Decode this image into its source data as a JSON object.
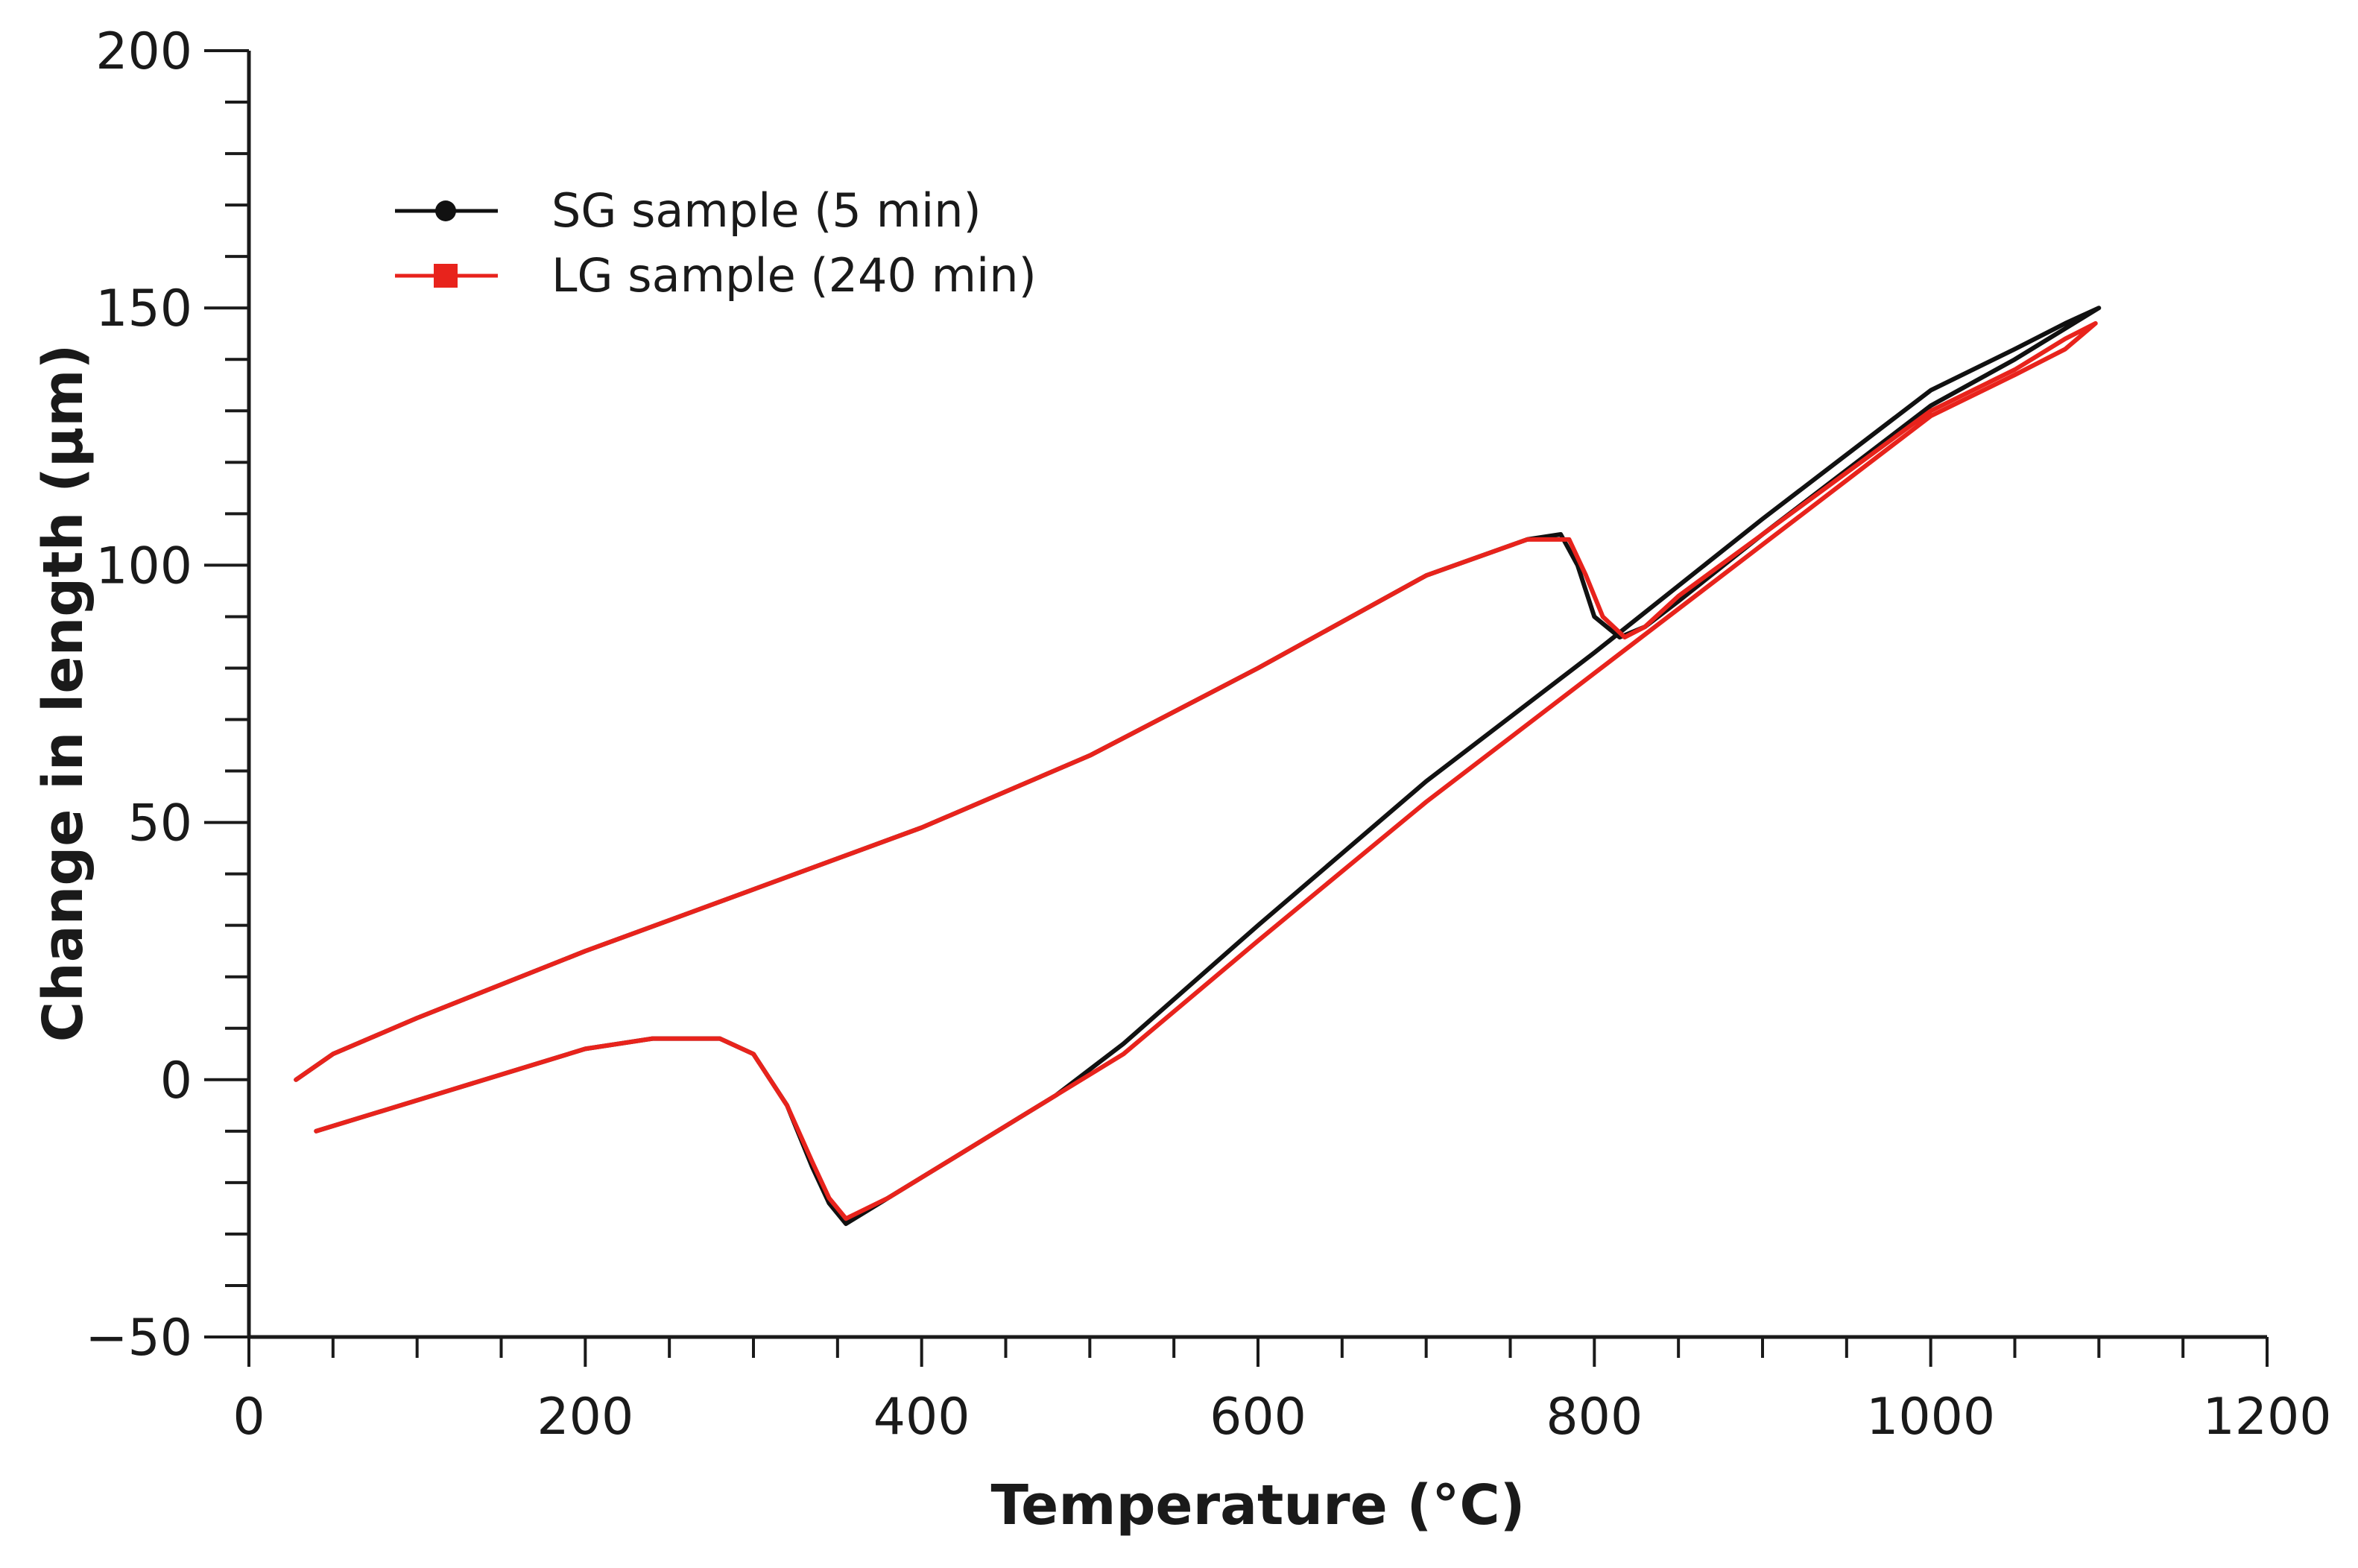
{
  "chart_data": {
    "type": "line",
    "title": "",
    "xlabel": "Temperature (°C)",
    "ylabel": "Change in length (μm)",
    "xlim": [
      0,
      1200
    ],
    "ylim": [
      -50,
      200
    ],
    "x_ticks": [
      0,
      200,
      400,
      600,
      800,
      1000,
      1200
    ],
    "x_tick_labels": [
      "0",
      "200",
      "400",
      "600",
      "800",
      "1000",
      "1200"
    ],
    "y_ticks": [
      -50,
      0,
      50,
      100,
      150,
      200
    ],
    "y_tick_labels": [
      "−50",
      "0",
      "50",
      "100",
      "150",
      "200"
    ],
    "x_minor_step": 50,
    "y_minor_step": 10,
    "grid": false,
    "legend_position": "top-left",
    "series": [
      {
        "name": "SG sample (5 min)",
        "color": "#111111",
        "marker": "circle",
        "x": [
          40,
          80,
          120,
          160,
          200,
          240,
          280,
          300,
          320,
          335,
          345,
          355,
          380,
          420,
          460,
          480,
          520,
          600,
          700,
          800,
          900,
          1000,
          1050,
          1080,
          1100,
          1100,
          1080,
          1050,
          1000,
          900,
          850,
          830,
          815,
          800,
          790,
          780,
          760,
          700,
          600,
          500,
          400,
          300,
          200,
          100,
          50,
          28
        ],
        "y": [
          -10,
          -6,
          -2,
          2,
          6,
          8,
          8,
          5,
          -5,
          -17,
          -24,
          -28,
          -23,
          -15,
          -7,
          -3,
          7,
          30,
          58,
          83,
          109,
          134,
          142,
          147,
          150,
          150,
          146,
          140,
          131,
          106,
          93,
          88,
          86,
          90,
          100,
          106,
          105,
          98,
          80,
          63,
          49,
          37,
          25,
          12,
          5,
          0
        ]
      },
      {
        "name": "LG sample (240 min)",
        "color": "#e8231c",
        "marker": "square",
        "x": [
          40,
          80,
          120,
          160,
          200,
          240,
          280,
          300,
          320,
          335,
          345,
          355,
          380,
          420,
          460,
          480,
          520,
          600,
          700,
          800,
          900,
          1000,
          1050,
          1080,
          1098,
          1098,
          1080,
          1050,
          1000,
          900,
          850,
          830,
          818,
          805,
          795,
          785,
          760,
          700,
          600,
          500,
          400,
          300,
          200,
          100,
          50,
          28
        ],
        "y": [
          -10,
          -6,
          -2,
          2,
          6,
          8,
          8,
          5,
          -5,
          -16,
          -23,
          -27,
          -23,
          -15,
          -7,
          -3,
          5,
          27,
          54,
          79,
          104,
          129,
          137,
          142,
          147,
          147,
          144,
          138,
          130,
          106,
          94,
          88,
          86,
          90,
          98,
          105,
          105,
          98,
          80,
          63,
          49,
          37,
          25,
          12,
          5,
          0
        ]
      }
    ]
  }
}
